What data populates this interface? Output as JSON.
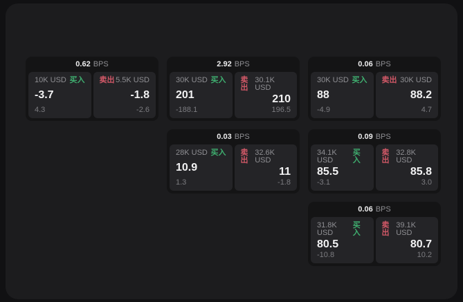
{
  "labels": {
    "buy": "买入",
    "sell": "卖出",
    "bps_unit": "BPS"
  },
  "colors": {
    "buy": "#3fae6f",
    "sell": "#d15867",
    "value": "#f2f2f3",
    "muted": "#8f8f93",
    "dim": "#7c7c80"
  },
  "cards": [
    {
      "row": 1,
      "col": 1,
      "bps": "0.62",
      "buy": {
        "notional": "10K USD",
        "price": "-3.7",
        "delta": "4.3"
      },
      "sell": {
        "notional": "5.5K USD",
        "price": "-1.8",
        "delta": "-2.6"
      }
    },
    {
      "row": 1,
      "col": 2,
      "bps": "2.92",
      "buy": {
        "notional": "30K USD",
        "price": "201",
        "delta": "-188.1"
      },
      "sell": {
        "notional": "30.1K USD",
        "price": "210",
        "delta": "196.5"
      }
    },
    {
      "row": 1,
      "col": 3,
      "bps": "0.06",
      "buy": {
        "notional": "30K USD",
        "price": "88",
        "delta": "-4.9"
      },
      "sell": {
        "notional": "30K USD",
        "price": "88.2",
        "delta": "4.7"
      }
    },
    {
      "row": 2,
      "col": 2,
      "bps": "0.03",
      "buy": {
        "notional": "28K USD",
        "price": "10.9",
        "delta": "1.3"
      },
      "sell": {
        "notional": "32.6K USD",
        "price": "11",
        "delta": "-1.8"
      }
    },
    {
      "row": 2,
      "col": 3,
      "bps": "0.09",
      "buy": {
        "notional": "34.1K USD",
        "price": "85.5",
        "delta": "-3.1"
      },
      "sell": {
        "notional": "32.8K USD",
        "price": "85.8",
        "delta": "3.0"
      }
    },
    {
      "row": 3,
      "col": 3,
      "bps": "0.06",
      "buy": {
        "notional": "31.8K USD",
        "price": "80.5",
        "delta": "-10.8"
      },
      "sell": {
        "notional": "39.1K USD",
        "price": "80.7",
        "delta": "10.2"
      }
    }
  ]
}
